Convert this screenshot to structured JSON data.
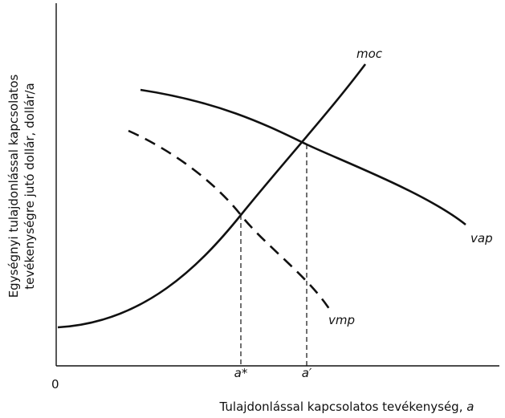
{
  "axes": {
    "y_label": [
      "Egységnyi tulajdonlással kapcsolatos",
      "tevékenységre jutó dollár, dollár/a"
    ],
    "x_label": {
      "text": "Tulajdonlással kapcsolatos tevékenység,",
      "variable": "a"
    },
    "origin": "0"
  },
  "curves": {
    "moc": "moc",
    "vap": "vap",
    "vmp": "vmp"
  },
  "ticks": [
    "a*",
    "a′"
  ]
}
